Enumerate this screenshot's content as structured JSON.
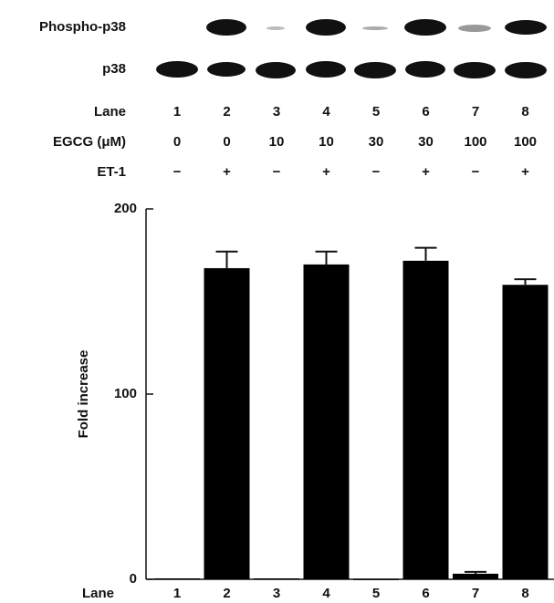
{
  "blot": {
    "rows": [
      "Phospho-p38",
      "p38"
    ],
    "lane_label": "Lane",
    "lanes": [
      "1",
      "2",
      "3",
      "4",
      "5",
      "6",
      "7",
      "8"
    ],
    "egcg_label": "EGCG (μM)",
    "egcg": [
      "0",
      "0",
      "10",
      "10",
      "30",
      "30",
      "100",
      "100"
    ],
    "et1_label": "ET-1",
    "et1": [
      "−",
      "+",
      "−",
      "+",
      "−",
      "+",
      "−",
      "+"
    ]
  },
  "chart_data": {
    "type": "bar",
    "y_label": "Fold increase",
    "x_label": "Lane",
    "categories": [
      "1",
      "2",
      "3",
      "4",
      "5",
      "6",
      "7",
      "8"
    ],
    "values": [
      0.5,
      168,
      0.5,
      170,
      0.3,
      172,
      3,
      159
    ],
    "errors": [
      0,
      9,
      0,
      7,
      0,
      7,
      1,
      3
    ],
    "color": "#000000",
    "ylim": [
      0,
      200
    ],
    "yticks": [
      0,
      100,
      200
    ]
  }
}
